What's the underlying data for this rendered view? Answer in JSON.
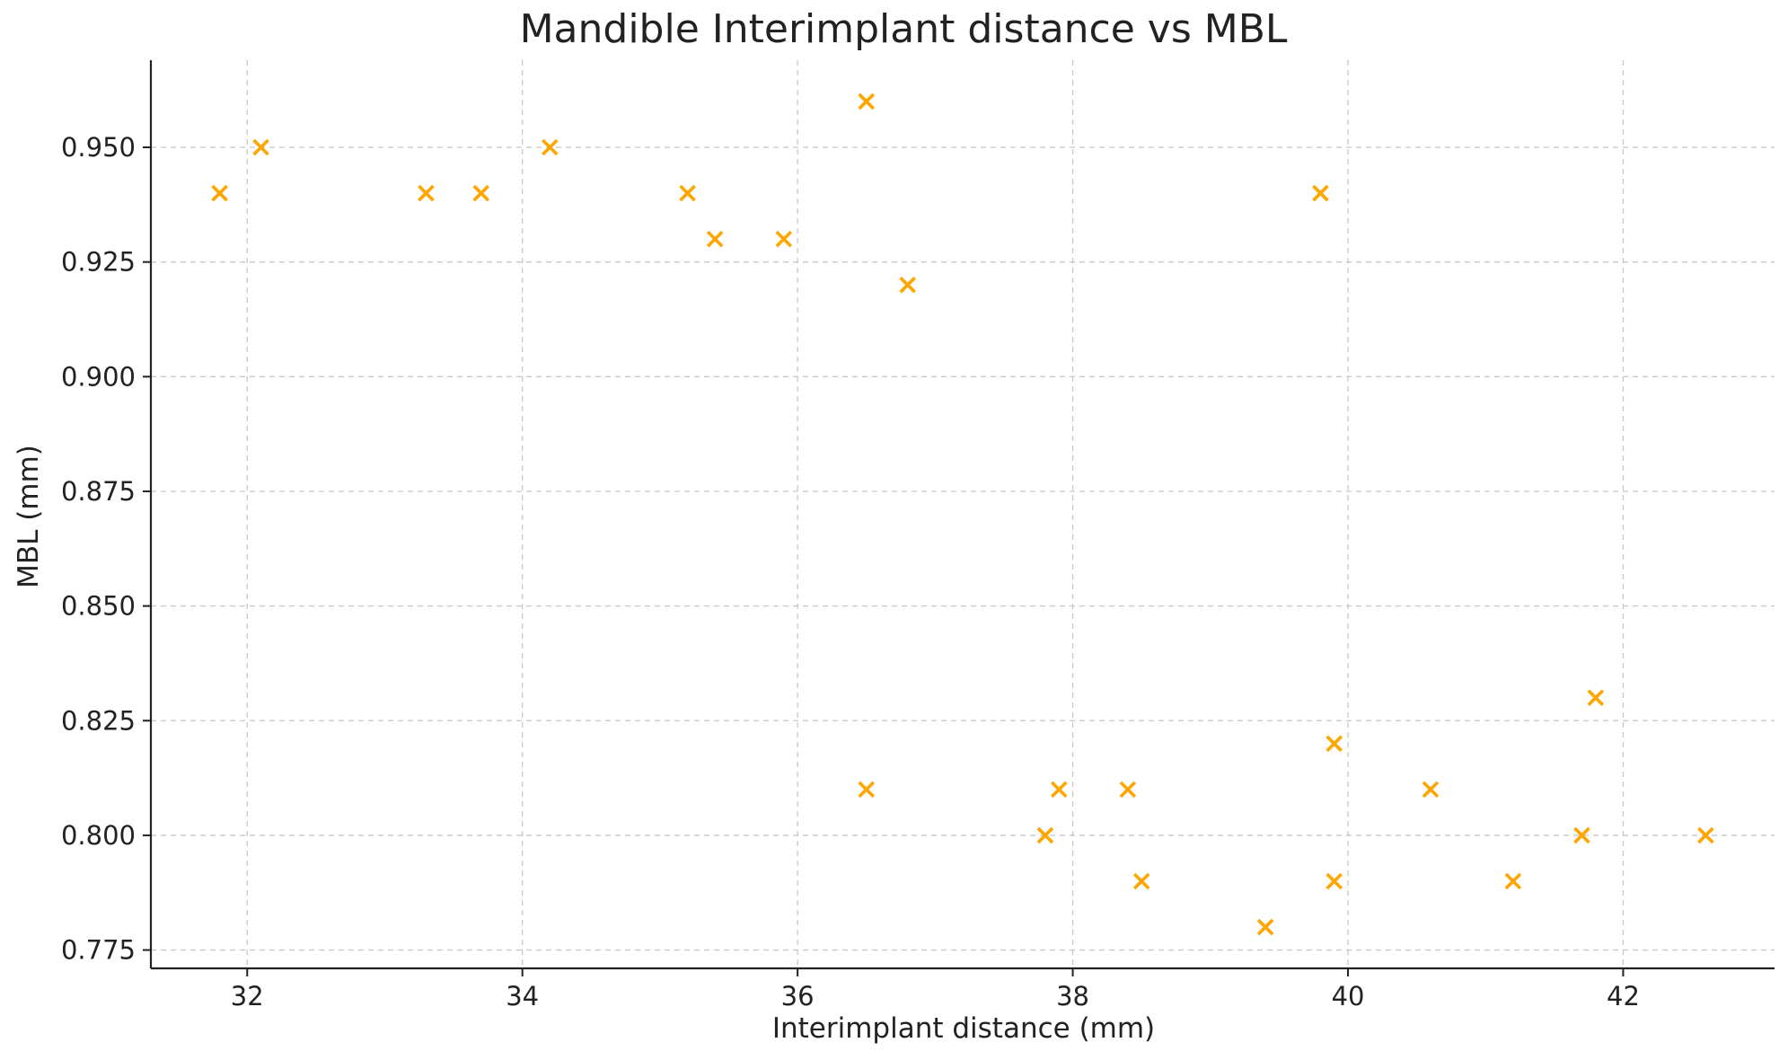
{
  "chart_data": {
    "type": "scatter",
    "title": "Mandible Interimplant distance vs MBL",
    "xlabel": "Interimplant distance (mm)",
    "ylabel": "MBL (mm)",
    "xlim": [
      31.3,
      43.1
    ],
    "ylim": [
      0.771,
      0.969
    ],
    "xticks": [
      32,
      34,
      36,
      38,
      40,
      42
    ],
    "xtick_labels": [
      "32",
      "34",
      "36",
      "38",
      "40",
      "42"
    ],
    "yticks": [
      0.775,
      0.8,
      0.825,
      0.85,
      0.875,
      0.9,
      0.925,
      0.95
    ],
    "ytick_labels": [
      "0.775",
      "0.800",
      "0.825",
      "0.850",
      "0.875",
      "0.900",
      "0.925",
      "0.950"
    ],
    "grid": true,
    "marker": "x",
    "marker_color": "#FFA500",
    "series": [
      {
        "points": [
          {
            "x": 31.8,
            "y": 0.94
          },
          {
            "x": 32.1,
            "y": 0.95
          },
          {
            "x": 33.3,
            "y": 0.94
          },
          {
            "x": 33.7,
            "y": 0.94
          },
          {
            "x": 34.2,
            "y": 0.95
          },
          {
            "x": 35.2,
            "y": 0.94
          },
          {
            "x": 35.4,
            "y": 0.93
          },
          {
            "x": 35.9,
            "y": 0.93
          },
          {
            "x": 36.5,
            "y": 0.96
          },
          {
            "x": 36.8,
            "y": 0.92
          },
          {
            "x": 39.8,
            "y": 0.94
          },
          {
            "x": 36.5,
            "y": 0.81
          },
          {
            "x": 37.8,
            "y": 0.8
          },
          {
            "x": 37.9,
            "y": 0.81
          },
          {
            "x": 38.4,
            "y": 0.81
          },
          {
            "x": 38.5,
            "y": 0.79
          },
          {
            "x": 39.4,
            "y": 0.78
          },
          {
            "x": 39.9,
            "y": 0.82
          },
          {
            "x": 39.9,
            "y": 0.79
          },
          {
            "x": 40.6,
            "y": 0.81
          },
          {
            "x": 41.2,
            "y": 0.79
          },
          {
            "x": 41.7,
            "y": 0.8
          },
          {
            "x": 41.8,
            "y": 0.83
          },
          {
            "x": 42.6,
            "y": 0.8
          }
        ]
      }
    ]
  }
}
